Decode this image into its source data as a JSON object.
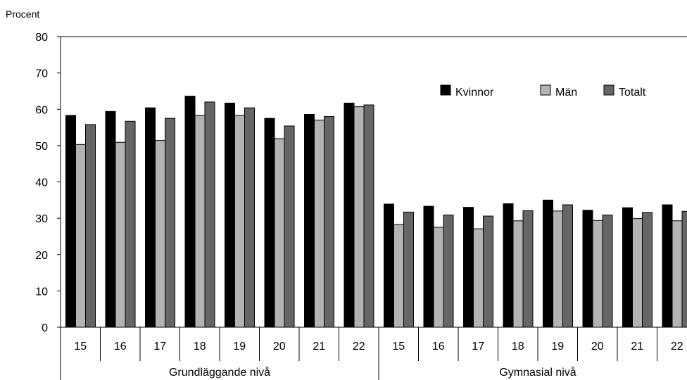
{
  "chart_data": {
    "type": "bar",
    "ylabel": "Procent",
    "ylim": [
      0,
      80
    ],
    "yticks": [
      0,
      10,
      20,
      30,
      40,
      50,
      60,
      70,
      80
    ],
    "groups": [
      {
        "label": "Grundläggande nivå",
        "categories": [
          "15",
          "16",
          "17",
          "18",
          "19",
          "20",
          "21",
          "22"
        ]
      },
      {
        "label": "Gymnasial nivå",
        "categories": [
          "15",
          "16",
          "17",
          "18",
          "19",
          "20",
          "21",
          "22"
        ]
      }
    ],
    "series": [
      {
        "name": "Kvinnor",
        "color": "#000000",
        "values": [
          58.3,
          59.4,
          60.4,
          63.6,
          61.7,
          57.5,
          58.6,
          61.7,
          33.9,
          33.3,
          33.0,
          34.0,
          35.0,
          32.2,
          32.9,
          33.7
        ]
      },
      {
        "name": "Män",
        "color": "#b3b3b3",
        "values": [
          50.3,
          50.9,
          51.4,
          58.3,
          58.3,
          51.9,
          57.0,
          60.7,
          28.3,
          27.5,
          27.1,
          29.3,
          32.0,
          29.4,
          29.9,
          29.3
        ]
      },
      {
        "name": "Totalt",
        "color": "#666666",
        "values": [
          55.8,
          56.7,
          57.5,
          62.0,
          60.4,
          55.4,
          58.0,
          61.2,
          31.7,
          30.9,
          30.6,
          32.1,
          33.7,
          30.9,
          31.6,
          31.9
        ]
      }
    ],
    "legend_position": "top-right",
    "grid": false
  }
}
